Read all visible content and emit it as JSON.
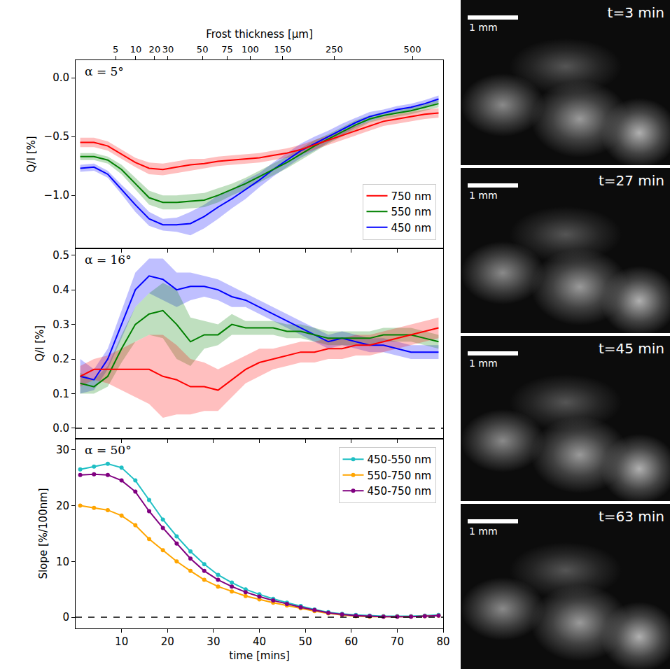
{
  "chart_data": [
    {
      "type": "line",
      "annotations": [
        "α = 5°"
      ],
      "x": [
        1,
        4,
        7,
        10,
        13,
        16,
        19,
        22,
        25,
        28,
        31,
        34,
        37,
        40,
        43,
        46,
        49,
        52,
        55,
        58,
        61,
        64,
        67,
        70,
        73,
        76,
        79
      ],
      "xlim": [
        0,
        80
      ],
      "xticks": [
        10,
        20,
        30,
        40,
        50,
        60,
        70,
        80
      ],
      "x2_label": "Frost thickness [μm]",
      "x2ticks": [
        {
          "value": 8.7,
          "label": "5"
        },
        {
          "value": 13.1,
          "label": "10"
        },
        {
          "value": 17.2,
          "label": "20"
        },
        {
          "value": 20.1,
          "label": "30"
        },
        {
          "value": 27.6,
          "label": "50"
        },
        {
          "value": 33,
          "label": "75"
        },
        {
          "value": 38,
          "label": "100"
        },
        {
          "value": 45.1,
          "label": "150"
        },
        {
          "value": 56.3,
          "label": "250"
        },
        {
          "value": 73.3,
          "label": "500"
        }
      ],
      "ylim": [
        -1.45,
        0.15
      ],
      "yticks": [
        {
          "value": -1,
          "label": "−1.0"
        },
        {
          "value": -0.5,
          "label": "−0.5"
        },
        {
          "value": 0,
          "label": "0.0"
        }
      ],
      "y_label": "Q/I [%]",
      "tick_labels": "y",
      "legend": "lower right",
      "series": [
        {
          "name": "450 nm",
          "color": "#0000ff",
          "values": [
            -0.77,
            -0.76,
            -0.82,
            -0.95,
            -1.08,
            -1.2,
            -1.25,
            -1.25,
            -1.24,
            -1.18,
            -1.1,
            -1.03,
            -0.95,
            -0.87,
            -0.78,
            -0.7,
            -0.62,
            -0.56,
            -0.5,
            -0.44,
            -0.38,
            -0.33,
            -0.3,
            -0.27,
            -0.25,
            -0.22,
            -0.18
          ],
          "lower": [
            -0.8,
            -0.79,
            -0.85,
            -0.99,
            -1.14,
            -1.26,
            -1.3,
            -1.31,
            -1.34,
            -1.28,
            -1.2,
            -1.11,
            -1.03,
            -0.93,
            -0.84,
            -0.76,
            -0.68,
            -0.62,
            -0.55,
            -0.49,
            -0.42,
            -0.37,
            -0.33,
            -0.3,
            -0.28,
            -0.25,
            -0.21
          ],
          "upper": [
            -0.74,
            -0.73,
            -0.79,
            -0.91,
            -1.02,
            -1.14,
            -1.2,
            -1.19,
            -1.14,
            -1.08,
            -1.0,
            -0.95,
            -0.87,
            -0.81,
            -0.72,
            -0.64,
            -0.56,
            -0.5,
            -0.45,
            -0.39,
            -0.34,
            -0.29,
            -0.27,
            -0.24,
            -0.22,
            -0.19,
            -0.15
          ]
        },
        {
          "name": "550 nm",
          "color": "#008000",
          "values": [
            -0.67,
            -0.67,
            -0.7,
            -0.78,
            -0.9,
            -1.02,
            -1.06,
            -1.06,
            -1.05,
            -1.04,
            -1.0,
            -0.95,
            -0.9,
            -0.84,
            -0.78,
            -0.72,
            -0.65,
            -0.58,
            -0.52,
            -0.46,
            -0.4,
            -0.35,
            -0.32,
            -0.3,
            -0.28,
            -0.25,
            -0.22
          ],
          "lower": [
            -0.7,
            -0.7,
            -0.73,
            -0.82,
            -0.95,
            -1.08,
            -1.12,
            -1.12,
            -1.11,
            -1.1,
            -1.06,
            -1.0,
            -0.95,
            -0.89,
            -0.83,
            -0.77,
            -0.7,
            -0.63,
            -0.56,
            -0.5,
            -0.44,
            -0.38,
            -0.35,
            -0.33,
            -0.31,
            -0.28,
            -0.25
          ],
          "upper": [
            -0.64,
            -0.64,
            -0.67,
            -0.74,
            -0.85,
            -0.96,
            -1.0,
            -1.0,
            -0.99,
            -0.98,
            -0.94,
            -0.9,
            -0.85,
            -0.79,
            -0.73,
            -0.67,
            -0.6,
            -0.53,
            -0.48,
            -0.42,
            -0.36,
            -0.32,
            -0.29,
            -0.27,
            -0.25,
            -0.22,
            -0.19
          ]
        },
        {
          "name": "750 nm",
          "color": "#ff0000",
          "values": [
            -0.55,
            -0.55,
            -0.58,
            -0.65,
            -0.72,
            -0.77,
            -0.78,
            -0.76,
            -0.74,
            -0.73,
            -0.71,
            -0.7,
            -0.69,
            -0.68,
            -0.66,
            -0.64,
            -0.61,
            -0.57,
            -0.53,
            -0.49,
            -0.45,
            -0.41,
            -0.37,
            -0.35,
            -0.33,
            -0.31,
            -0.3
          ],
          "lower": [
            -0.59,
            -0.59,
            -0.62,
            -0.69,
            -0.76,
            -0.82,
            -0.83,
            -0.81,
            -0.79,
            -0.77,
            -0.75,
            -0.74,
            -0.73,
            -0.72,
            -0.7,
            -0.68,
            -0.65,
            -0.61,
            -0.57,
            -0.53,
            -0.49,
            -0.45,
            -0.41,
            -0.39,
            -0.37,
            -0.35,
            -0.34
          ],
          "upper": [
            -0.51,
            -0.51,
            -0.54,
            -0.61,
            -0.68,
            -0.72,
            -0.73,
            -0.71,
            -0.69,
            -0.69,
            -0.67,
            -0.66,
            -0.65,
            -0.64,
            -0.62,
            -0.6,
            -0.57,
            -0.53,
            -0.49,
            -0.45,
            -0.41,
            -0.37,
            -0.33,
            -0.31,
            -0.29,
            -0.27,
            -0.26
          ]
        }
      ]
    },
    {
      "type": "line",
      "annotations": [
        "α = 16°"
      ],
      "x": [
        1,
        4,
        7,
        10,
        13,
        16,
        19,
        22,
        25,
        28,
        31,
        34,
        37,
        40,
        43,
        46,
        49,
        52,
        55,
        58,
        61,
        64,
        67,
        70,
        73,
        76,
        79
      ],
      "xlim": [
        0,
        80
      ],
      "xticks": [
        10,
        20,
        30,
        40,
        50,
        60,
        70,
        80
      ],
      "ylim": [
        -0.03,
        0.52
      ],
      "yticks": [
        {
          "value": 0,
          "label": "0.0"
        },
        0.1,
        0.2,
        0.3,
        0.4,
        0.5
      ],
      "y_label": "Q/I [%]",
      "tick_labels": "y",
      "hline": 0,
      "line_style": "dashed",
      "series": [
        {
          "name": "450 nm",
          "color": "#0000ff",
          "values": [
            0.15,
            0.14,
            0.2,
            0.3,
            0.4,
            0.44,
            0.43,
            0.4,
            0.41,
            0.41,
            0.4,
            0.38,
            0.37,
            0.35,
            0.33,
            0.31,
            0.29,
            0.27,
            0.25,
            0.26,
            0.25,
            0.24,
            0.24,
            0.23,
            0.22,
            0.22,
            0.22
          ],
          "lower": [
            0.1,
            0.11,
            0.17,
            0.26,
            0.35,
            0.39,
            0.37,
            0.35,
            0.37,
            0.38,
            0.37,
            0.35,
            0.35,
            0.33,
            0.31,
            0.29,
            0.27,
            0.25,
            0.23,
            0.24,
            0.23,
            0.22,
            0.22,
            0.21,
            0.2,
            0.2,
            0.2
          ],
          "upper": [
            0.2,
            0.17,
            0.23,
            0.34,
            0.45,
            0.49,
            0.49,
            0.45,
            0.45,
            0.44,
            0.43,
            0.41,
            0.39,
            0.37,
            0.35,
            0.33,
            0.31,
            0.29,
            0.27,
            0.28,
            0.27,
            0.26,
            0.26,
            0.25,
            0.24,
            0.24,
            0.24
          ]
        },
        {
          "name": "550 nm",
          "color": "#008000",
          "values": [
            0.13,
            0.12,
            0.15,
            0.23,
            0.3,
            0.33,
            0.34,
            0.3,
            0.25,
            0.27,
            0.27,
            0.3,
            0.29,
            0.29,
            0.29,
            0.28,
            0.28,
            0.27,
            0.26,
            0.26,
            0.26,
            0.26,
            0.27,
            0.27,
            0.27,
            0.26,
            0.25
          ],
          "lower": [
            0.1,
            0.1,
            0.12,
            0.19,
            0.25,
            0.27,
            0.26,
            0.2,
            0.18,
            0.23,
            0.24,
            0.27,
            0.27,
            0.27,
            0.27,
            0.26,
            0.26,
            0.25,
            0.24,
            0.24,
            0.24,
            0.24,
            0.25,
            0.25,
            0.25,
            0.24,
            0.23
          ],
          "upper": [
            0.16,
            0.14,
            0.18,
            0.27,
            0.35,
            0.39,
            0.42,
            0.4,
            0.32,
            0.31,
            0.3,
            0.33,
            0.31,
            0.31,
            0.31,
            0.3,
            0.3,
            0.29,
            0.28,
            0.28,
            0.28,
            0.28,
            0.29,
            0.29,
            0.29,
            0.28,
            0.27
          ]
        },
        {
          "name": "750 nm",
          "color": "#ff0000",
          "values": [
            0.15,
            0.17,
            0.17,
            0.17,
            0.17,
            0.17,
            0.15,
            0.14,
            0.12,
            0.12,
            0.11,
            0.14,
            0.17,
            0.19,
            0.2,
            0.21,
            0.22,
            0.22,
            0.23,
            0.23,
            0.24,
            0.24,
            0.25,
            0.26,
            0.27,
            0.28,
            0.29
          ],
          "lower": [
            0.12,
            0.14,
            0.13,
            0.11,
            0.09,
            0.07,
            0.03,
            0.04,
            0.04,
            0.05,
            0.05,
            0.09,
            0.13,
            0.15,
            0.17,
            0.18,
            0.19,
            0.19,
            0.2,
            0.2,
            0.21,
            0.21,
            0.22,
            0.23,
            0.24,
            0.25,
            0.26
          ],
          "upper": [
            0.18,
            0.2,
            0.21,
            0.23,
            0.25,
            0.27,
            0.27,
            0.24,
            0.2,
            0.19,
            0.17,
            0.19,
            0.21,
            0.23,
            0.23,
            0.24,
            0.25,
            0.25,
            0.26,
            0.26,
            0.27,
            0.27,
            0.28,
            0.29,
            0.3,
            0.31,
            0.32
          ]
        }
      ]
    },
    {
      "type": "line",
      "annotations": [
        "α = 50°"
      ],
      "x": [
        1,
        4,
        7,
        10,
        13,
        16,
        19,
        22,
        25,
        28,
        31,
        34,
        37,
        40,
        43,
        46,
        49,
        52,
        55,
        58,
        61,
        64,
        67,
        70,
        73,
        76,
        79
      ],
      "xlim": [
        0,
        80
      ],
      "xticks": [
        10,
        20,
        30,
        40,
        50,
        60,
        70,
        80
      ],
      "x_label": "time [mins]",
      "ylim": [
        -2,
        32
      ],
      "yticks": [
        0,
        10,
        20,
        30
      ],
      "y_label": "Slope [%/100nm]",
      "hline": 0,
      "line_style": "dashed",
      "marker": "circle",
      "legend": "upper right",
      "series": [
        {
          "name": "450-550 nm",
          "color": "#1fbfc4",
          "values": [
            26.5,
            27,
            27.5,
            26.8,
            24.5,
            21,
            17.5,
            14.5,
            11.8,
            9.5,
            7.6,
            6.2,
            5,
            4.1,
            3.3,
            2.6,
            2,
            1.4,
            0.9,
            0.6,
            0.4,
            0.3,
            0.2,
            0.2,
            0.2,
            0.3,
            0.4
          ]
        },
        {
          "name": "550-750 nm",
          "color": "#ffa500",
          "values": [
            20,
            19.6,
            19.2,
            18.2,
            16.5,
            14,
            12,
            10,
            8.3,
            6.7,
            5.5,
            4.6,
            3.8,
            3.2,
            2.6,
            2.1,
            1.6,
            1.1,
            0.7,
            0.4,
            0.2,
            0.1,
            0.1,
            0.1,
            0.1,
            0.2,
            0.3
          ]
        },
        {
          "name": "450-750 nm",
          "color": "#800080",
          "values": [
            25.5,
            25.6,
            25.5,
            24.5,
            22.5,
            19,
            16,
            13.2,
            10.5,
            8.3,
            6.7,
            5.5,
            4.5,
            3.7,
            3,
            2.4,
            1.8,
            1.3,
            0.8,
            0.5,
            0.3,
            0.2,
            0.1,
            0.1,
            0.1,
            0.2,
            0.3
          ]
        }
      ]
    }
  ],
  "images": [
    {
      "scale_bar": "1 mm",
      "time_label": "t=3 min"
    },
    {
      "scale_bar": "1 mm",
      "time_label": "t=27 min"
    },
    {
      "scale_bar": "1 mm",
      "time_label": "t=45 min"
    },
    {
      "scale_bar": "1 mm",
      "time_label": "t=63 min"
    }
  ]
}
